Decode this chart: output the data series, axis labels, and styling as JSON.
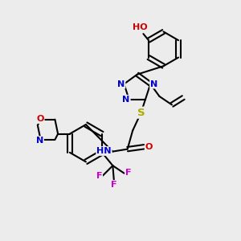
{
  "bg_color": "#ececec",
  "bond_color": "#000000",
  "bond_width": 1.5,
  "atom_colors": {
    "N": "#0000cc",
    "O": "#cc0000",
    "S": "#aaaa00",
    "F": "#cc00cc",
    "C": "#000000",
    "H": "#555555"
  },
  "font_size": 8.0
}
